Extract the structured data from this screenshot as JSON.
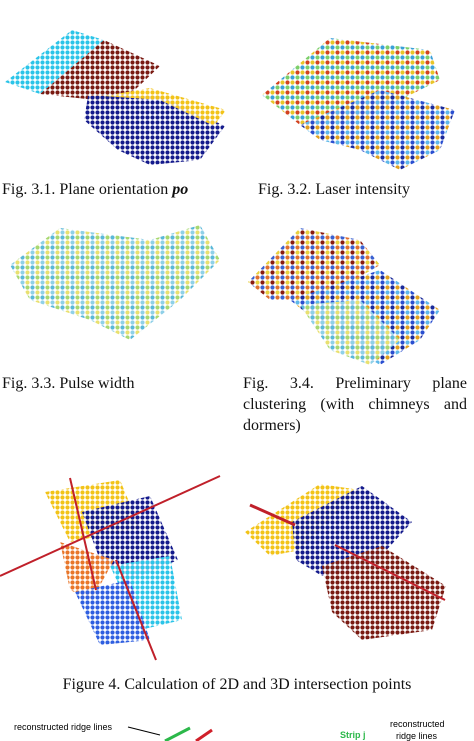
{
  "captions": {
    "fig31": {
      "text": "Fig. 3.1. Plane orientation ",
      "emphasis": "po"
    },
    "fig32": "Fig. 3.2. Laser intensity",
    "fig33": "Fig. 3.3. Pulse width",
    "fig34": "Fig. 3.4. Preliminary plane clustering (with chimneys and dormers)",
    "figure4": "Figure 4. Calculation of 2D and 3D intersection points"
  },
  "bottom_figure": {
    "left_label": "reconstructed ridge lines",
    "strip_label": "Strip j",
    "right_label": [
      "reconstructed",
      "ridge lines"
    ]
  }
}
